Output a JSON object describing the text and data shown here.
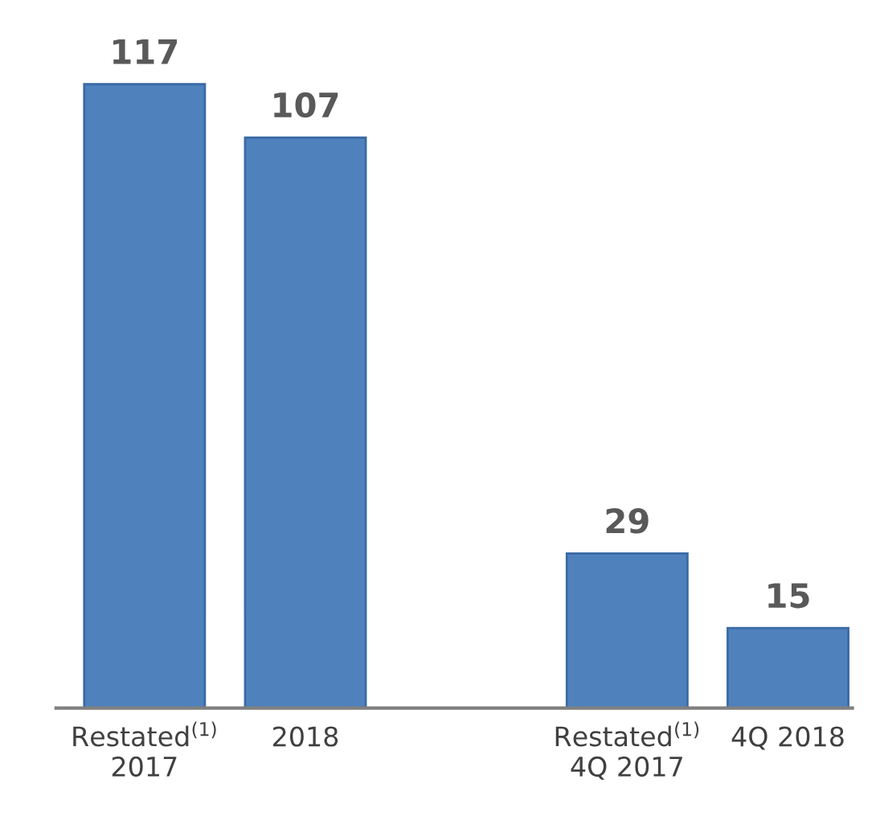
{
  "chart_data": {
    "type": "bar",
    "categories": [
      "Restated$^{(1)}$\n2017",
      "2018",
      null,
      "Restated$^{(1)}$\n4Q 2017",
      "4Q 2018"
    ],
    "values": [
      117,
      107,
      null,
      29,
      15
    ],
    "color": "#4f81bd",
    "data_labels": true,
    "grid": false,
    "legend": false
  }
}
